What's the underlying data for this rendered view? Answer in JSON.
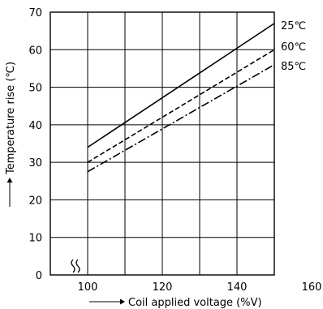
{
  "chart_data": {
    "type": "line",
    "xlabel": "Coil applied voltage (%V)",
    "ylabel": "Temperature rise (℃)",
    "xlim": [
      100,
      160
    ],
    "ylim": [
      0,
      70
    ],
    "x_axis_break": true,
    "grid": true,
    "x_ticks": [
      "100",
      "120",
      "140",
      "160"
    ],
    "y_ticks": [
      "0",
      "10",
      "20",
      "30",
      "40",
      "50",
      "60",
      "70"
    ],
    "series": [
      {
        "name": "25℃",
        "x": [
          100,
          150
        ],
        "y": [
          34,
          67
        ],
        "style": "solid"
      },
      {
        "name": "60℃",
        "x": [
          100,
          150
        ],
        "y": [
          30,
          60
        ],
        "style": "dashed"
      },
      {
        "name": "85℃",
        "x": [
          100,
          150
        ],
        "y": [
          27.5,
          56
        ],
        "style": "dashdot"
      }
    ]
  }
}
